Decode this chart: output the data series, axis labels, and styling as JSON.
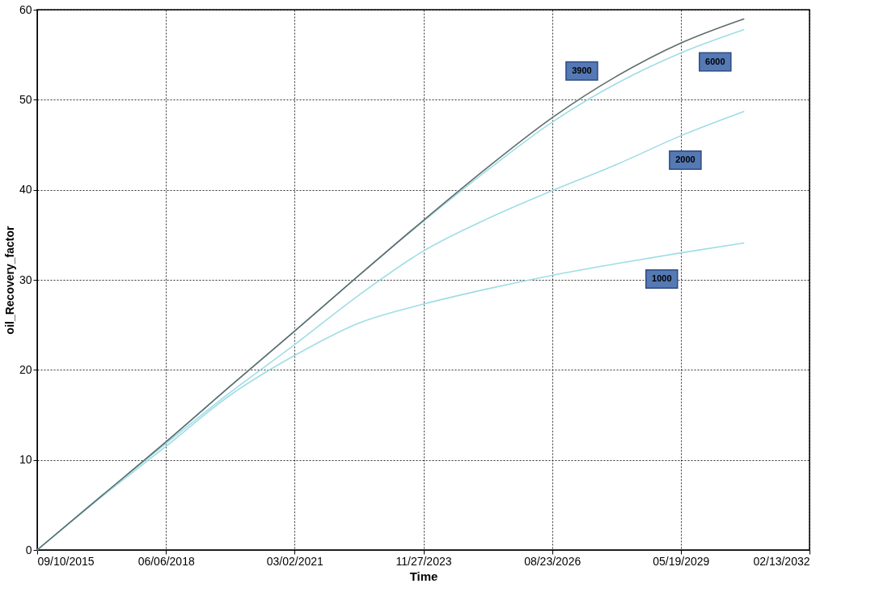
{
  "chart_data": {
    "type": "line",
    "xlabel": "Time",
    "ylabel": "oil_Recovery_factor",
    "x": [
      "2015-09-10",
      "2017-01-22",
      "2018-06-06",
      "2019-10-19",
      "2021-03-02",
      "2022-07-15",
      "2023-11-27",
      "2025-04-10",
      "2026-08-23",
      "2028-01-05",
      "2029-05-19",
      "2030-09-24"
    ],
    "series": [
      {
        "color": "#5f6b6b",
        "values": [
          0,
          6,
          12,
          18.2,
          24.3,
          30.5,
          36.6,
          42.5,
          48,
          52.6,
          56.3,
          59.0
        ]
      },
      {
        "color": "#9fdde6",
        "values": [
          0,
          6,
          12,
          18.2,
          24.3,
          30.5,
          36.5,
          42.2,
          47.5,
          51.8,
          55.2,
          57.8
        ]
      },
      {
        "color": "#9fdde6",
        "values": [
          0,
          6,
          11.8,
          17.5,
          22.8,
          28.3,
          33.2,
          36.8,
          39.9,
          42.8,
          46.0,
          48.7
        ]
      },
      {
        "color": "#9fdde6",
        "values": [
          0,
          5.9,
          11.5,
          17.2,
          21.6,
          25.2,
          27.3,
          29.0,
          30.5,
          31.8,
          33.0,
          34.1
        ]
      }
    ],
    "annotations": [
      {
        "text": "3900",
        "x": "2027-04-11",
        "y": 53.2
      },
      {
        "text": "6000",
        "x": "2030-02-10",
        "y": 54.2
      },
      {
        "text": "2000",
        "x": "2029-06-23",
        "y": 43.3
      },
      {
        "text": "1000",
        "x": "2028-12-22",
        "y": 30.1
      }
    ],
    "xlim": [
      "2015-09-10",
      "2032-02-13"
    ],
    "xticks": [
      {
        "value": "2015-09-10",
        "label": "09/10/2015"
      },
      {
        "value": "2018-06-06",
        "label": "06/06/2018"
      },
      {
        "value": "2021-03-02",
        "label": "03/02/2021"
      },
      {
        "value": "2023-11-27",
        "label": "11/27/2023"
      },
      {
        "value": "2026-08-23",
        "label": "08/23/2026"
      },
      {
        "value": "2029-05-19",
        "label": "05/19/2029"
      },
      {
        "value": "2032-02-13",
        "label": "02/13/2032"
      }
    ],
    "ylim": [
      0,
      60
    ],
    "yticks": [
      0,
      10,
      20,
      30,
      40,
      50,
      60
    ],
    "grid": true,
    "marker": "none",
    "line_style": "solid"
  }
}
